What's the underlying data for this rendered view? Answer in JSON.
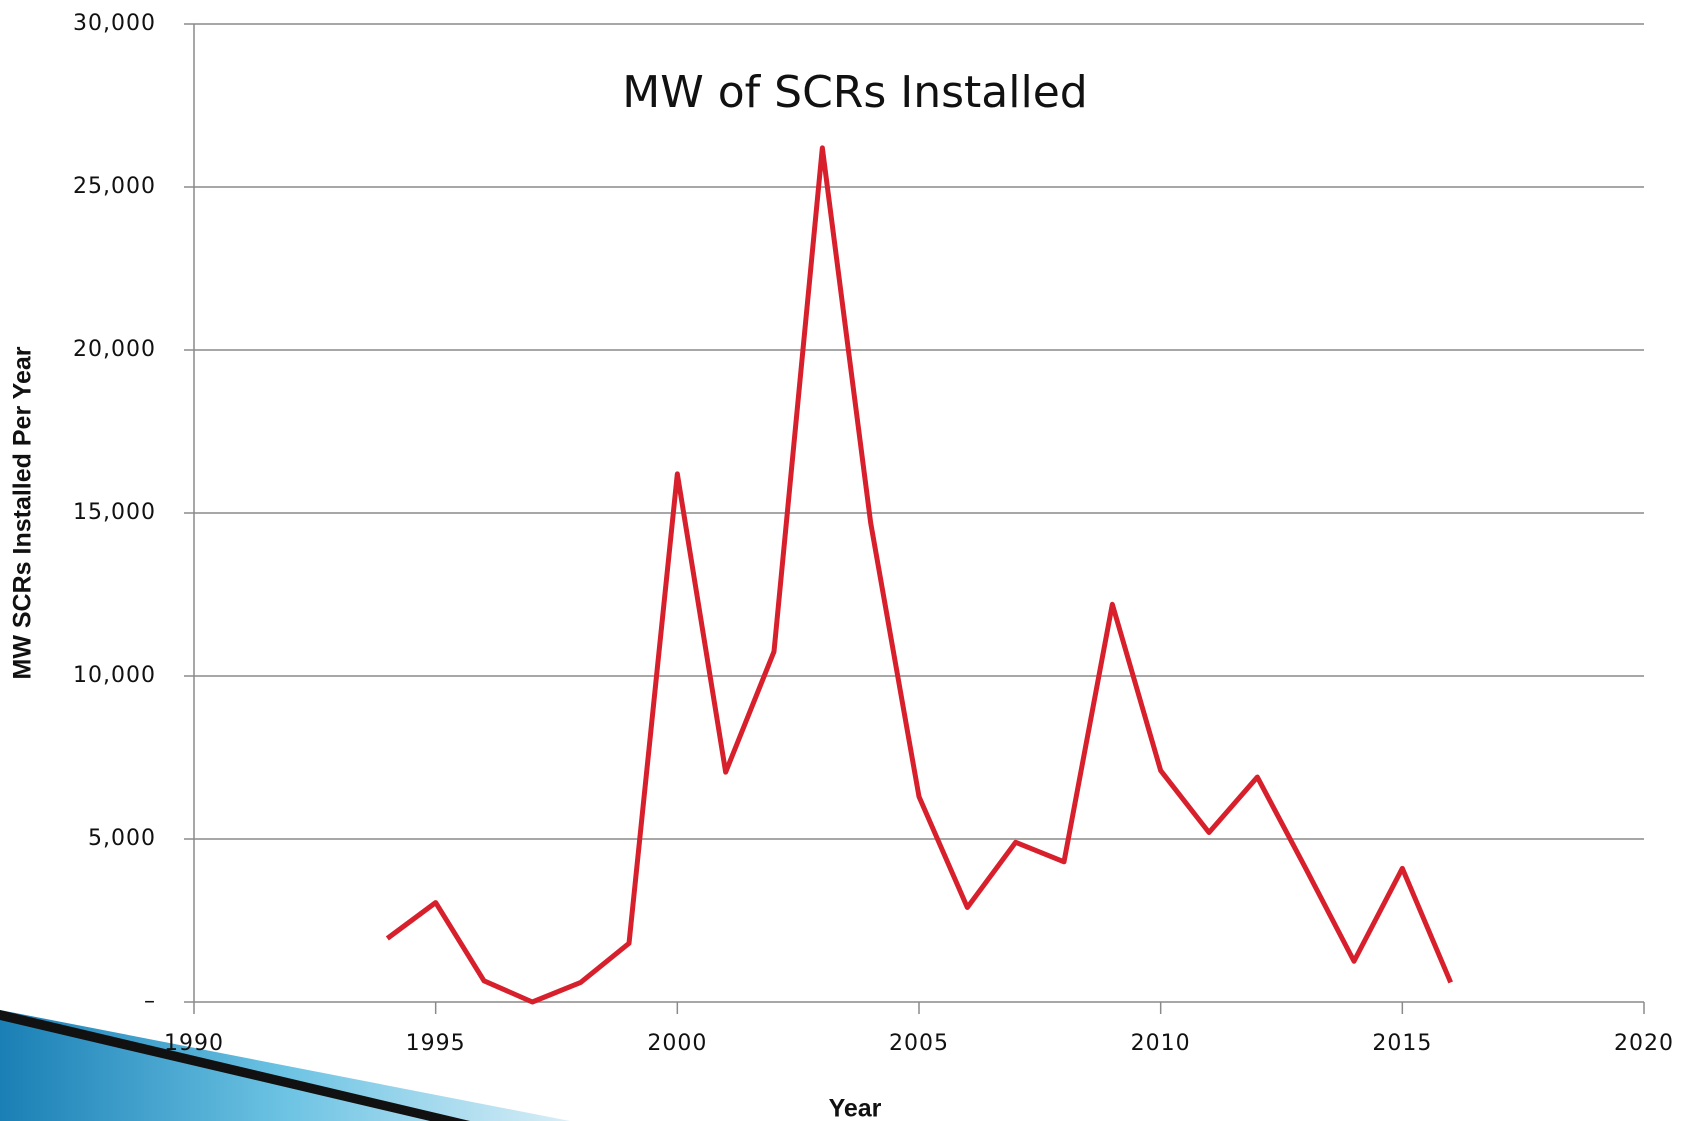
{
  "chart_data": {
    "type": "line",
    "title": "MW of SCRs Installed",
    "xlabel": "Year",
    "ylabel": "MW SCRs Installed Per Year",
    "x": [
      1994,
      1995,
      1996,
      1997,
      1998,
      1999,
      2000,
      2001,
      2002,
      2003,
      2004,
      2005,
      2006,
      2007,
      2008,
      2009,
      2010,
      2011,
      2012,
      2013,
      2014,
      2015,
      2016
    ],
    "series": [
      {
        "color": "#d7202c",
        "values": [
          1950,
          3050,
          650,
          0,
          600,
          1800,
          16200,
          7050,
          10750,
          26200,
          14700,
          6300,
          2900,
          4900,
          4300,
          12200,
          7100,
          5200,
          6900,
          4100,
          1250,
          4100,
          600
        ]
      }
    ],
    "xlim": [
      1990,
      2020
    ],
    "xticks": [
      1990,
      1995,
      2000,
      2005,
      2010,
      2015,
      2020
    ],
    "ylim": [
      0,
      30000
    ],
    "yticks": [
      {
        "value": 0,
        "label": "–"
      },
      {
        "value": 5000,
        "label": "5,000"
      },
      {
        "value": 10000,
        "label": "10,000"
      },
      {
        "value": 15000,
        "label": "15,000"
      },
      {
        "value": 20000,
        "label": "20,000"
      },
      {
        "value": 25000,
        "label": "25,000"
      },
      {
        "value": 30000,
        "label": "30,000"
      }
    ],
    "grid": true
  }
}
